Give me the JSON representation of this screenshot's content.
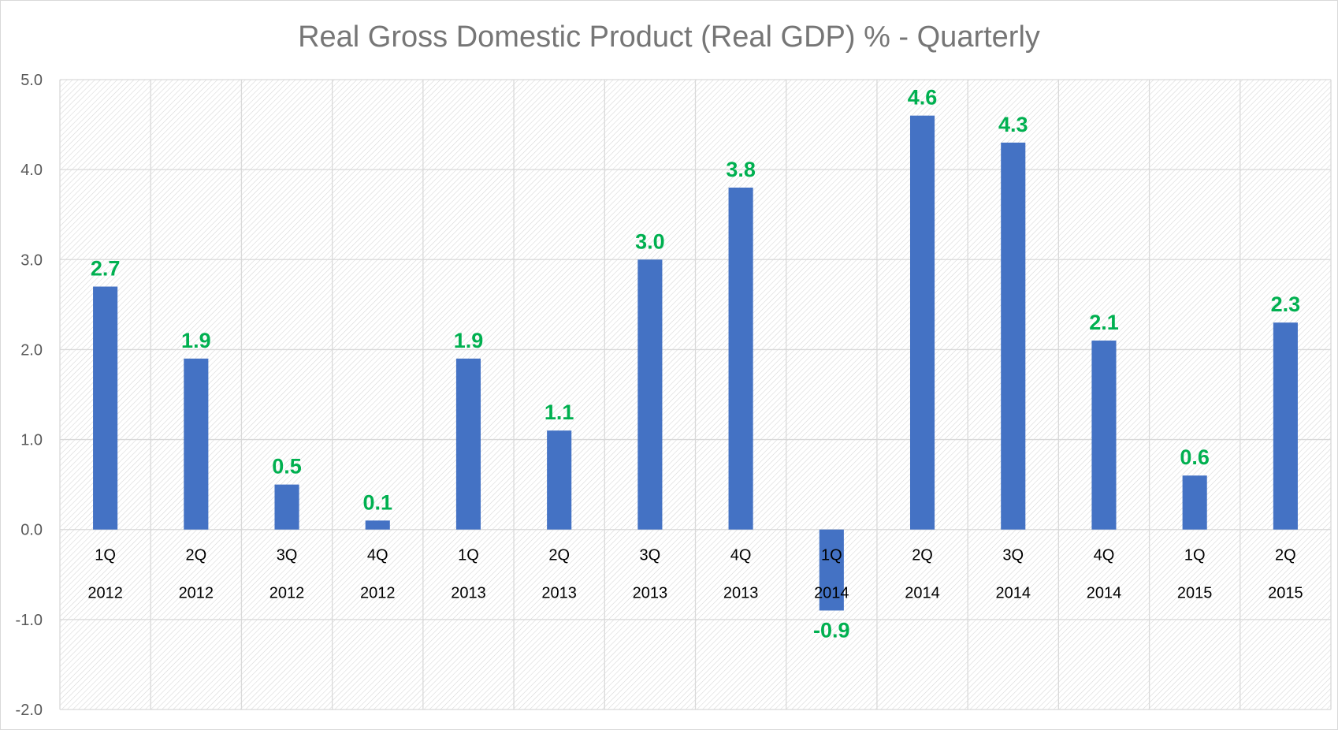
{
  "chart_data": {
    "type": "bar",
    "title": "Real Gross Domestic Product (Real GDP) % - Quarterly",
    "xlabel": "",
    "ylabel": "",
    "ylim": [
      -2.0,
      5.0
    ],
    "yticks": [
      "5.0",
      "4.0",
      "3.0",
      "2.0",
      "1.0",
      "0.0",
      "-1.0",
      "-2.0"
    ],
    "ytick_values": [
      5,
      4,
      3,
      2,
      1,
      0,
      -1,
      -2
    ],
    "categories": [
      {
        "quarter": "1Q",
        "year": "2012"
      },
      {
        "quarter": "2Q",
        "year": "2012"
      },
      {
        "quarter": "3Q",
        "year": "2012"
      },
      {
        "quarter": "4Q",
        "year": "2012"
      },
      {
        "quarter": "1Q",
        "year": "2013"
      },
      {
        "quarter": "2Q",
        "year": "2013"
      },
      {
        "quarter": "3Q",
        "year": "2013"
      },
      {
        "quarter": "4Q",
        "year": "2013"
      },
      {
        "quarter": "1Q",
        "year": "2014"
      },
      {
        "quarter": "2Q",
        "year": "2014"
      },
      {
        "quarter": "3Q",
        "year": "2014"
      },
      {
        "quarter": "4Q",
        "year": "2014"
      },
      {
        "quarter": "1Q",
        "year": "2015"
      },
      {
        "quarter": "2Q",
        "year": "2015"
      }
    ],
    "values": [
      2.7,
      1.9,
      0.5,
      0.1,
      1.9,
      1.1,
      3.0,
      3.8,
      -0.9,
      4.6,
      4.3,
      2.1,
      0.6,
      2.3
    ],
    "data_labels": [
      "2.7",
      "1.9",
      "0.5",
      "0.1",
      "1.9",
      "1.1",
      "3.0",
      "3.8",
      "-0.9",
      "4.6",
      "4.3",
      "2.1",
      "0.6",
      "2.3"
    ],
    "grid": true,
    "legend": "none",
    "colors": {
      "bar": "#4472C4",
      "data_label": "#00B050",
      "title": "#767676",
      "gridline": "#d9d9d9",
      "plot_hatch": "#d6d6d6"
    }
  }
}
